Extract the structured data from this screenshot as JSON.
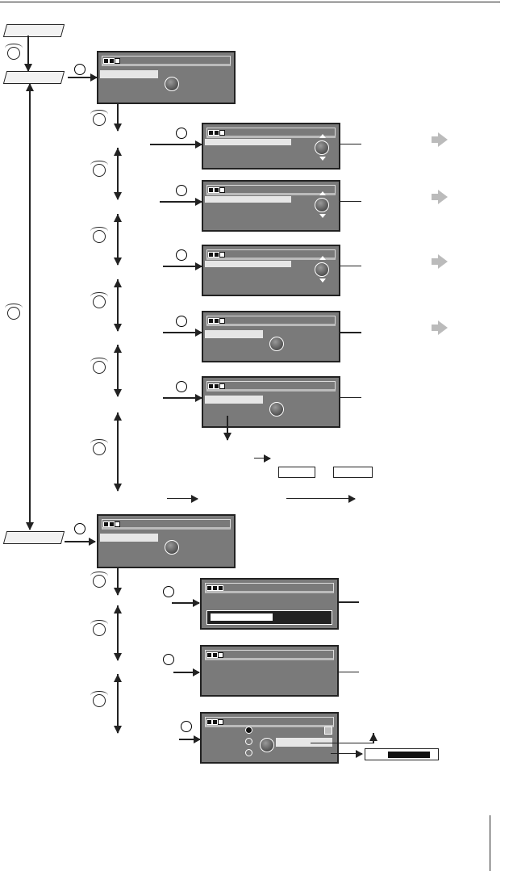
{
  "diagram": {
    "ok_label": "OK"
  }
}
